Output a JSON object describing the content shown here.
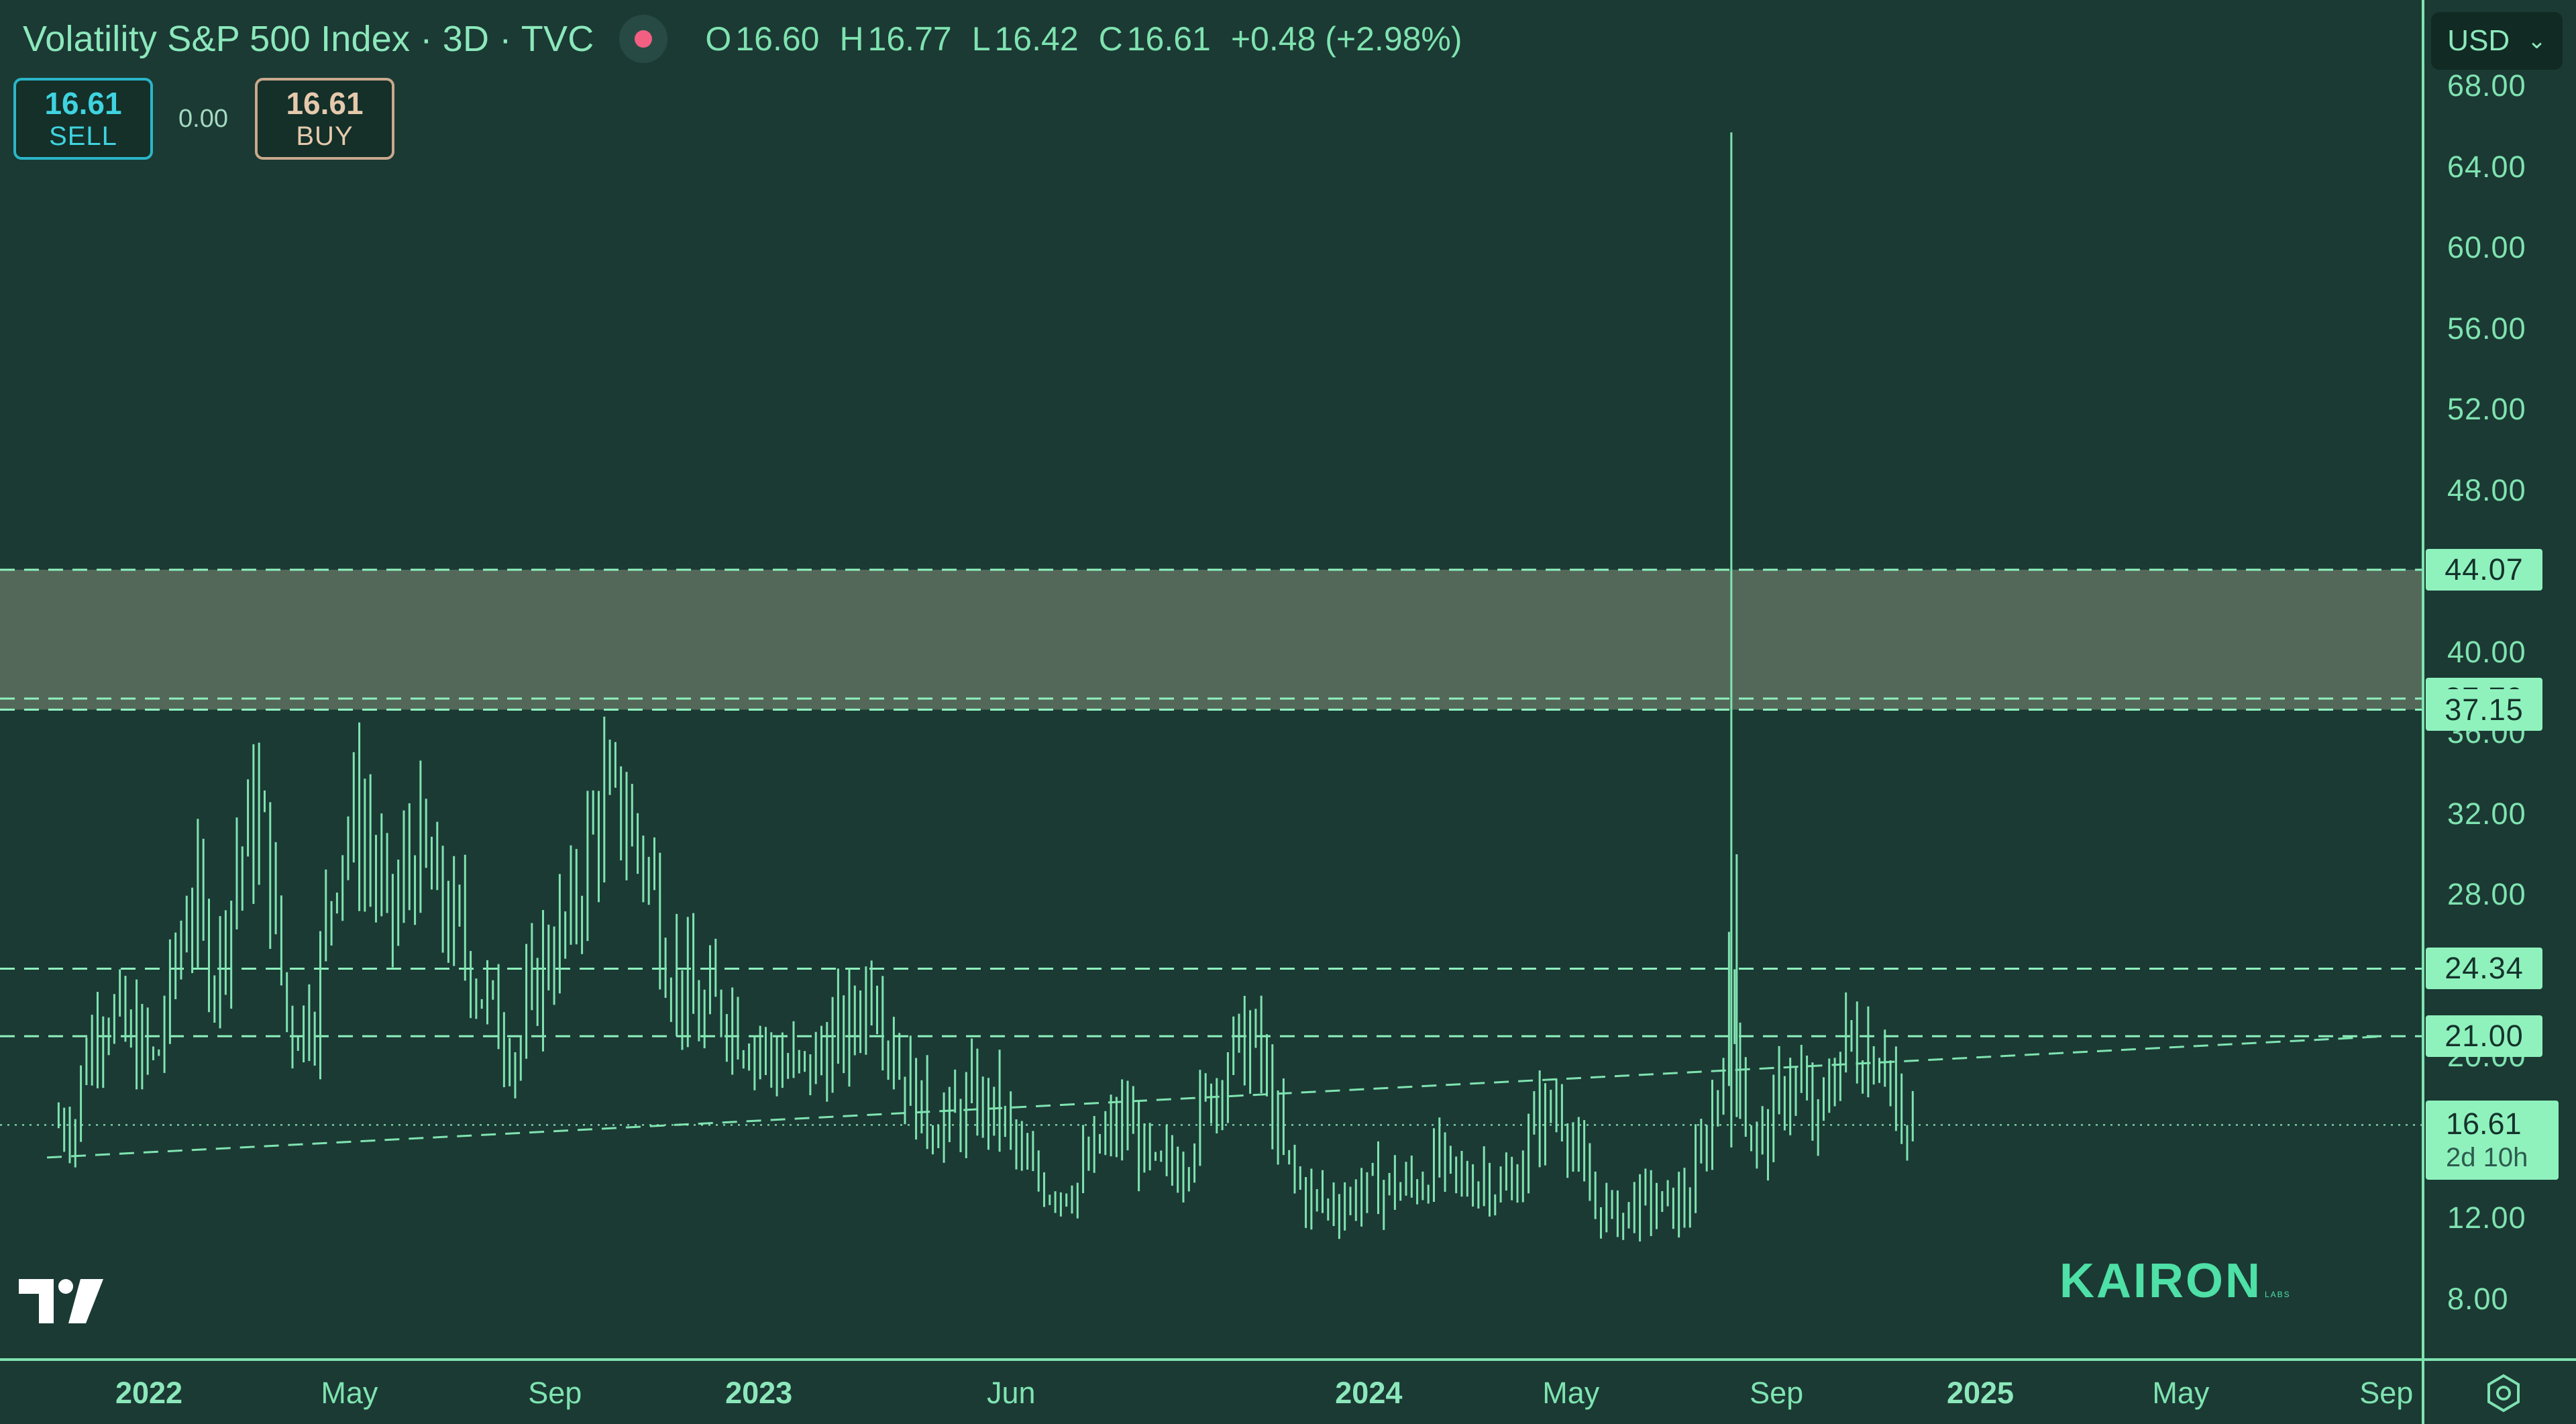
{
  "header": {
    "title": "Volatility S&P 500 Index · 3D · TVC",
    "ohlc": {
      "open_label": "O",
      "open": "16.60",
      "high_label": "H",
      "high": "16.77",
      "low_label": "L",
      "low": "16.42",
      "close_label": "C",
      "close": "16.61",
      "change": "+0.48 (+2.98%)"
    }
  },
  "trade": {
    "sell_price": "16.61",
    "sell_label": "SELL",
    "spread": "0.00",
    "buy_price": "16.61",
    "buy_label": "BUY"
  },
  "currency": {
    "selected": "USD"
  },
  "price_scale": {
    "labels": [
      "68.00",
      "64.00",
      "60.00",
      "56.00",
      "52.00",
      "48.00",
      "40.00",
      "36.00",
      "32.00",
      "28.00",
      "24.00",
      "20.00",
      "12.00",
      "8.00"
    ],
    "tags": [
      {
        "value": "44.07"
      },
      {
        "value": "37.70"
      },
      {
        "value": "37.15"
      },
      {
        "value": "24.34"
      },
      {
        "value": "21.00"
      }
    ],
    "current": {
      "price": "16.61",
      "countdown": "2d 10h"
    }
  },
  "time_axis": {
    "labels": [
      {
        "text": "2022",
        "year": true
      },
      {
        "text": "May",
        "year": false
      },
      {
        "text": "Sep",
        "year": false
      },
      {
        "text": "2023",
        "year": true
      },
      {
        "text": "Jun",
        "year": false
      },
      {
        "text": "2024",
        "year": true
      },
      {
        "text": "May",
        "year": false
      },
      {
        "text": "Sep",
        "year": false
      },
      {
        "text": "2025",
        "year": true
      },
      {
        "text": "May",
        "year": false
      },
      {
        "text": "Sep",
        "year": false
      }
    ]
  },
  "watermark": {
    "text": "KAIRON",
    "sub": "LABS"
  },
  "icons": {
    "live": "live-dot-icon",
    "chevron": "chevron-down-icon",
    "settings": "gear-icon",
    "logo": "tradingview-logo"
  },
  "colors": {
    "background": "#1b3a34",
    "accent": "#7fe3b0",
    "tag": "#8ff2bd",
    "zone": "#54685a",
    "sell": "#2bb5c8",
    "buy": "#c9a98d",
    "live": "#f25f82"
  },
  "chart_data": {
    "type": "ohlc",
    "symbol": "Volatility S&P 500 Index",
    "interval": "3D",
    "ylim": [
      6,
      70
    ],
    "zone": {
      "low": 37.15,
      "high": 44.07
    },
    "levels": [
      44.07,
      37.7,
      37.15,
      24.34,
      21.0
    ],
    "current_price": 16.61,
    "trendline": {
      "start": [
        "2021-11",
        15.0
      ],
      "end": [
        "2025-09",
        21.0
      ]
    },
    "x_range": [
      "2021-11",
      "2025-09"
    ],
    "series_close": [
      [
        "2021-11-20",
        18.5
      ],
      [
        "2021-12-05",
        22.5
      ],
      [
        "2021-12-20",
        20.5
      ],
      [
        "2022-01-05",
        19.5
      ],
      [
        "2022-01-25",
        27.5
      ],
      [
        "2022-02-10",
        24.0
      ],
      [
        "2022-02-25",
        30.0
      ],
      [
        "2022-03-10",
        31.5
      ],
      [
        "2022-03-25",
        21.5
      ],
      [
        "2022-04-10",
        22.0
      ],
      [
        "2022-04-25",
        31.0
      ],
      [
        "2022-05-10",
        30.5
      ],
      [
        "2022-05-25",
        26.0
      ],
      [
        "2022-06-10",
        30.0
      ],
      [
        "2022-06-25",
        27.0
      ],
      [
        "2022-07-10",
        25.0
      ],
      [
        "2022-07-25",
        22.0
      ],
      [
        "2022-08-10",
        20.0
      ],
      [
        "2022-08-25",
        24.5
      ],
      [
        "2022-09-10",
        26.0
      ],
      [
        "2022-09-25",
        31.5
      ],
      [
        "2022-10-10",
        32.0
      ],
      [
        "2022-10-25",
        29.5
      ],
      [
        "2022-11-10",
        24.0
      ],
      [
        "2022-11-25",
        21.5
      ],
      [
        "2022-12-10",
        22.5
      ],
      [
        "2022-12-25",
        21.0
      ],
      [
        "2023-01-10",
        19.5
      ],
      [
        "2023-01-25",
        19.0
      ],
      [
        "2023-02-10",
        20.0
      ],
      [
        "2023-02-25",
        21.0
      ],
      [
        "2023-03-10",
        24.0
      ],
      [
        "2023-03-25",
        19.5
      ],
      [
        "2023-04-10",
        17.0
      ],
      [
        "2023-04-25",
        16.5
      ],
      [
        "2023-05-10",
        17.5
      ],
      [
        "2023-05-25",
        17.0
      ],
      [
        "2023-06-10",
        14.0
      ],
      [
        "2023-06-25",
        13.5
      ],
      [
        "2023-07-10",
        13.5
      ],
      [
        "2023-07-25",
        15.5
      ],
      [
        "2023-08-10",
        16.5
      ],
      [
        "2023-08-25",
        14.0
      ],
      [
        "2023-09-10",
        14.5
      ],
      [
        "2023-09-25",
        17.5
      ],
      [
        "2023-10-10",
        20.0
      ],
      [
        "2023-10-25",
        20.5
      ],
      [
        "2023-11-10",
        15.0
      ],
      [
        "2023-11-25",
        12.8
      ],
      [
        "2023-12-10",
        12.5
      ],
      [
        "2023-12-25",
        13.0
      ],
      [
        "2024-01-10",
        13.5
      ],
      [
        "2024-01-25",
        13.3
      ],
      [
        "2024-02-10",
        14.5
      ],
      [
        "2024-02-25",
        13.5
      ],
      [
        "2024-03-10",
        14.0
      ],
      [
        "2024-03-25",
        13.0
      ],
      [
        "2024-04-10",
        16.5
      ],
      [
        "2024-04-25",
        17.5
      ],
      [
        "2024-05-10",
        13.0
      ],
      [
        "2024-05-25",
        12.0
      ],
      [
        "2024-06-10",
        12.5
      ],
      [
        "2024-06-25",
        12.5
      ],
      [
        "2024-07-10",
        12.5
      ],
      [
        "2024-07-25",
        17.0
      ],
      [
        "2024-08-05",
        23.0
      ],
      [
        "2024-08-15",
        16.0
      ],
      [
        "2024-08-25",
        15.5
      ],
      [
        "2024-09-10",
        19.0
      ],
      [
        "2024-09-25",
        16.0
      ],
      [
        "2024-10-10",
        20.5
      ],
      [
        "2024-10-25",
        20.0
      ],
      [
        "2024-11-05",
        20.5
      ],
      [
        "2024-11-15",
        15.0
      ],
      [
        "2024-11-22",
        16.61
      ]
    ]
  }
}
